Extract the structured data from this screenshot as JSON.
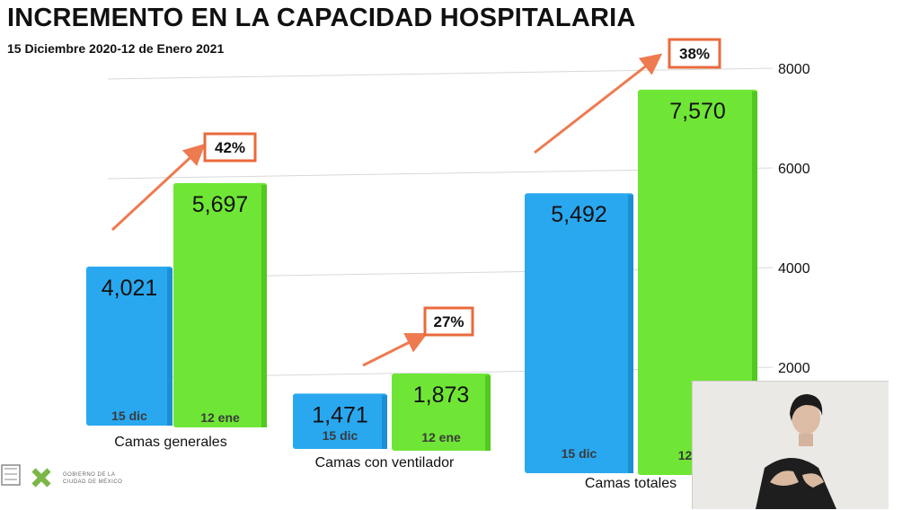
{
  "header": {
    "title": "INCREMENTO EN LA CAPACIDAD HOSPITALARIA",
    "subtitle": "15 Diciembre 2020-12 de Enero 2021"
  },
  "colors": {
    "blue": "#29a8f0",
    "green": "#6fe636",
    "arrow": "#ee7a50",
    "box_border": "#ea6a3c"
  },
  "chart_data": {
    "type": "bar",
    "categories": [
      "Camas generales",
      "Camas con ventilador",
      "Camas totales"
    ],
    "series": [
      {
        "name": "15 dic",
        "values": [
          4021,
          1471,
          5492
        ],
        "labels": [
          "4,021",
          "1,471",
          "5,492"
        ]
      },
      {
        "name": "12 ene",
        "values": [
          5697,
          1873,
          7570
        ],
        "labels": [
          "5,697",
          "1,873",
          "7,570"
        ]
      }
    ],
    "increase_labels": [
      "42%",
      "27%",
      "38%"
    ],
    "y_ticks": [
      2000,
      4000,
      6000,
      8000
    ],
    "ylim": [
      0,
      8000
    ],
    "grid": true
  },
  "footer": {
    "logo_line1": "GOBIERNO DE LA",
    "logo_line2": "CIUDAD DE MÉXICO"
  }
}
